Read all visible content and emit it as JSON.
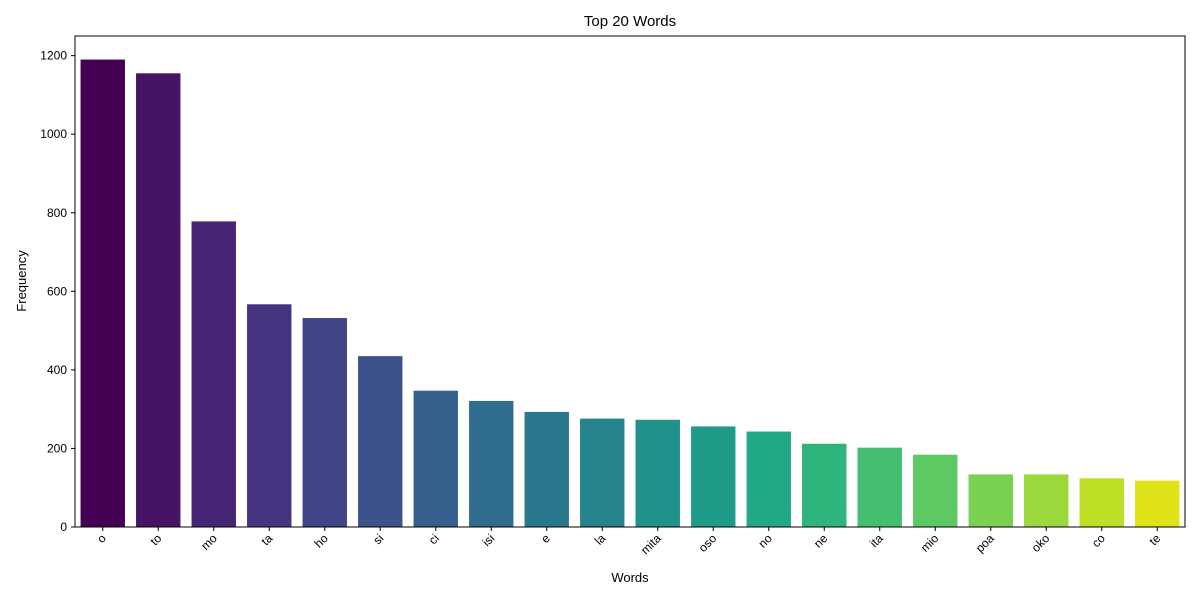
{
  "chart_data": {
    "type": "bar",
    "title": "Top 20 Words",
    "xlabel": "Words",
    "ylabel": "Frequency",
    "categories": [
      "o",
      "to",
      "mo",
      "ta",
      "ho",
      "si",
      "ci",
      "isi",
      "e",
      "la",
      "mita",
      "oso",
      "no",
      "ne",
      "ita",
      "mio",
      "poa",
      "oko",
      "co",
      "te"
    ],
    "values": [
      1190,
      1155,
      778,
      567,
      532,
      435,
      347,
      321,
      293,
      276,
      273,
      256,
      243,
      212,
      202,
      184,
      134,
      134,
      124,
      118
    ],
    "ylim": [
      0,
      1250
    ],
    "yticks": [
      0,
      200,
      400,
      600,
      800,
      1000,
      1200
    ],
    "colors": [
      "#440154",
      "#471365",
      "#482475",
      "#463480",
      "#414487",
      "#3b528b",
      "#355f8d",
      "#2f6c8e",
      "#2a788e",
      "#25848e",
      "#21918c",
      "#1e9c89",
      "#22a884",
      "#2fb47c",
      "#44bf70",
      "#5ec962",
      "#7ad151",
      "#9bd93c",
      "#bddf26",
      "#dfe318"
    ],
    "grid": false,
    "legend": "none"
  }
}
